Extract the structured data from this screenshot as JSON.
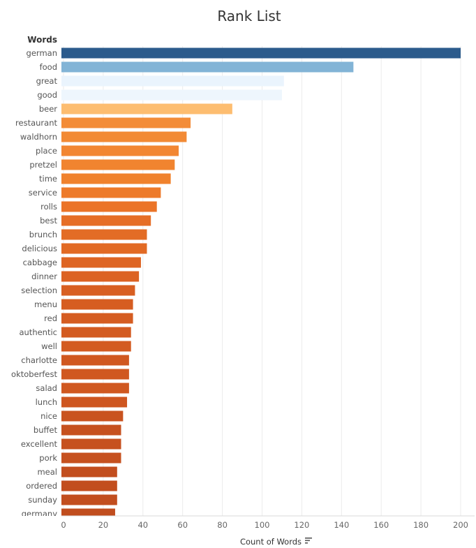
{
  "chart_data": {
    "type": "bar",
    "orientation": "horizontal",
    "title": "Rank List",
    "row_header": "Words",
    "xlabel": "Count of Words",
    "xlim": [
      0,
      205
    ],
    "xticks": [
      0,
      20,
      40,
      60,
      80,
      100,
      120,
      140,
      160,
      180,
      200
    ],
    "grid": true,
    "categories": [
      "german",
      "food",
      "great",
      "good",
      "beer",
      "restaurant",
      "waldhorn",
      "place",
      "pretzel",
      "time",
      "service",
      "rolls",
      "best",
      "brunch",
      "delicious",
      "cabbage",
      "dinner",
      "selection",
      "menu",
      "red",
      "authentic",
      "well",
      "charlotte",
      "oktoberfest",
      "salad",
      "lunch",
      "nice",
      "buffet",
      "excellent",
      "pork",
      "meal",
      "ordered",
      "sunday",
      "germany"
    ],
    "values": [
      200,
      146,
      111,
      110,
      85,
      64,
      62,
      58,
      56,
      54,
      49,
      47,
      44,
      42,
      42,
      39,
      38,
      36,
      35,
      35,
      34,
      34,
      33,
      33,
      33,
      32,
      30,
      29,
      29,
      29,
      27,
      27,
      27,
      26
    ],
    "colors": [
      "#2c5b8c",
      "#82b4d6",
      "#eaf4fd",
      "#eef6fd",
      "#fdbd70",
      "#f38c38",
      "#f28a35",
      "#f28632",
      "#f1842f",
      "#f0822d",
      "#ed7a2a",
      "#eb7428",
      "#e66e26",
      "#e36c25",
      "#e26a24",
      "#de6524",
      "#dc6223",
      "#d85f22",
      "#d65d21",
      "#d55c21",
      "#d35b21",
      "#d35b21",
      "#d05820",
      "#d05820",
      "#d05820",
      "#ce5620",
      "#c9531f",
      "#c6511f",
      "#c6511f",
      "#c6511f",
      "#c24e1e",
      "#c24e1e",
      "#c24e1e",
      "#c04d1e"
    ]
  }
}
